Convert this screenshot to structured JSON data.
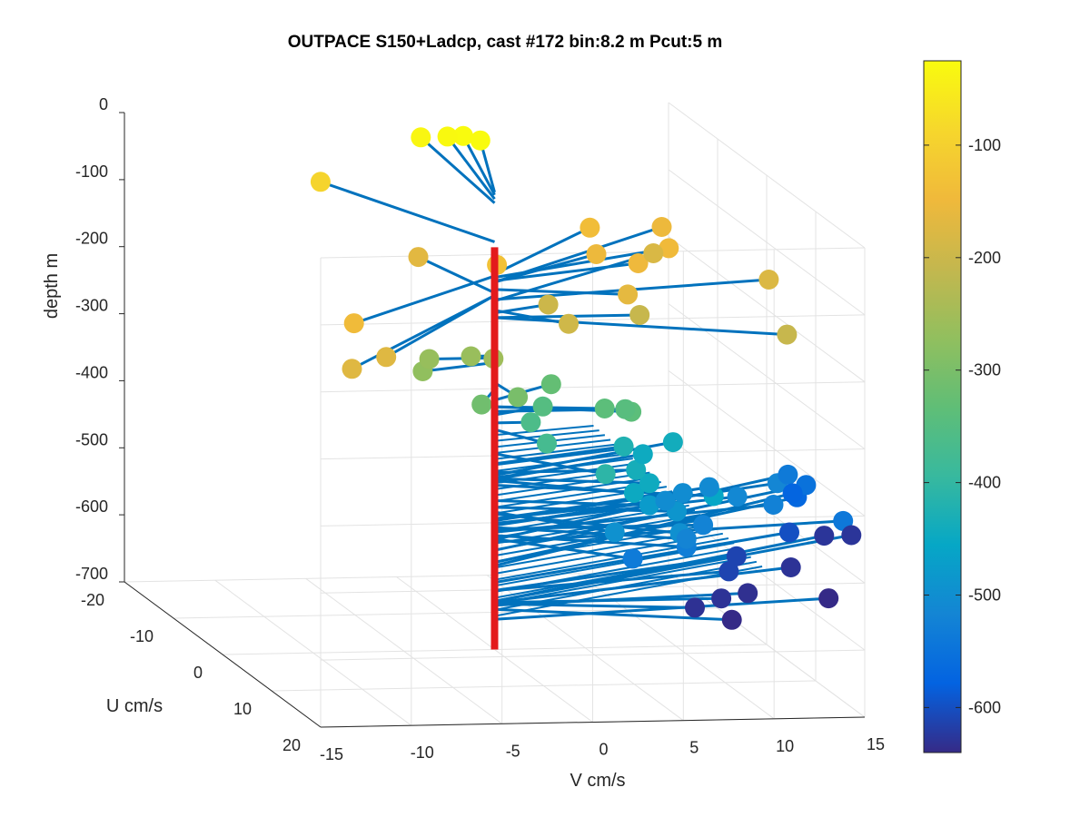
{
  "chart_data": {
    "type": "scatter3d",
    "title": "OUTPACE S150+Ladcp, cast #172 bin:8.2 m  Pcut:5 m",
    "xlabel": "V cm/s",
    "ylabel": "U cm/s",
    "zlabel": "depth m",
    "xlim": [
      -15,
      15
    ],
    "ylim": [
      -20,
      20
    ],
    "zlim": [
      -700,
      0
    ],
    "x_ticks": [
      "-15",
      "-10",
      "-5",
      "0",
      "5",
      "10",
      "15"
    ],
    "y_ticks": [
      "-20",
      "-10",
      "0",
      "10",
      "20"
    ],
    "z_ticks": [
      "0",
      "-100",
      "-200",
      "-300",
      "-400",
      "-500",
      "-600",
      "-700"
    ],
    "grid": true,
    "colormap": "parula",
    "colorbar": {
      "range": [
        -640,
        -25
      ],
      "ticks": [
        "-100",
        "-200",
        "-300",
        "-400",
        "-500",
        "-600"
      ]
    },
    "mean_depth_line": {
      "z_range": [
        -100,
        -700
      ],
      "color": "#e31a1c"
    },
    "stick_color": "#0072bd",
    "points": [
      {
        "z": -18,
        "v": 3.0,
        "u": -14
      },
      {
        "z": -22,
        "v": 2.6,
        "u": -16
      },
      {
        "z": -28,
        "v": 2.0,
        "u": -17
      },
      {
        "z": -34,
        "v": 0.8,
        "u": -18
      },
      {
        "z": -92,
        "v": -5.0,
        "u": -17
      },
      {
        "z": -132,
        "v": 0.4,
        "u": -1
      },
      {
        "z": -143,
        "v": -11.0,
        "u": 12
      },
      {
        "z": -168,
        "v": -1.5,
        "u": -10
      },
      {
        "z": -172,
        "v": -13.0,
        "u": 19
      },
      {
        "z": -172,
        "v": -10.3,
        "u": 16
      },
      {
        "z": -140,
        "v": 8.5,
        "u": -12
      },
      {
        "z": -145,
        "v": 11.5,
        "u": -7
      },
      {
        "z": -152,
        "v": 7.5,
        "u": -7
      },
      {
        "z": -150,
        "v": 9.0,
        "u": -4
      },
      {
        "z": -152,
        "v": 13.0,
        "u": -14
      },
      {
        "z": -163,
        "v": 6.8,
        "u": 2
      },
      {
        "z": -178,
        "v": 16.2,
        "u": -4
      },
      {
        "z": -180,
        "v": 12.0,
        "u": -12
      },
      {
        "z": -194,
        "v": 3.0,
        "u": 4
      },
      {
        "z": -198,
        "v": 3.5,
        "u": -2
      },
      {
        "z": -205,
        "v": 8.0,
        "u": 0
      },
      {
        "z": -205,
        "v": 14.5,
        "u": 6
      },
      {
        "z": -255,
        "v": -0.6,
        "u": 2
      },
      {
        "z": -262,
        "v": -1.3,
        "u": 0
      },
      {
        "z": -265,
        "v": -3.6,
        "u": 0
      },
      {
        "z": -272,
        "v": -4.5,
        "u": 2
      },
      {
        "z": -302,
        "v": 0.2,
        "u": 4
      },
      {
        "z": -312,
        "v": -1.8,
        "u": 4
      },
      {
        "z": -328,
        "v": 4.2,
        "u": -4
      },
      {
        "z": -338,
        "v": 7.0,
        "u": 2
      },
      {
        "z": -338,
        "v": 5.8,
        "u": 1
      },
      {
        "z": -345,
        "v": 7.2,
        "u": 0
      },
      {
        "z": -350,
        "v": 3.2,
        "u": -2
      },
      {
        "z": -362,
        "v": 2.0,
        "u": 0
      },
      {
        "z": -372,
        "v": 1.8,
        "u": 4
      },
      {
        "z": -408,
        "v": 4.5,
        "u": 6
      },
      {
        "z": -423,
        "v": 8.2,
        "u": -4
      },
      {
        "z": -440,
        "v": 12.0,
        "u": -8
      },
      {
        "z": -446,
        "v": 9.8,
        "u": -6
      },
      {
        "z": -436,
        "v": 7.8,
        "u": 0
      },
      {
        "z": -445,
        "v": 8.0,
        "u": 2
      },
      {
        "z": -448,
        "v": 6.6,
        "u": 4
      },
      {
        "z": -455,
        "v": 11.0,
        "u": 4
      },
      {
        "z": -478,
        "v": 8.0,
        "u": 2
      },
      {
        "z": -488,
        "v": 9.5,
        "u": 2
      },
      {
        "z": -495,
        "v": 5.0,
        "u": 6
      },
      {
        "z": -498,
        "v": 8.6,
        "u": 6
      },
      {
        "z": -505,
        "v": 10.5,
        "u": -4
      },
      {
        "z": -505,
        "v": 12.0,
        "u": -6
      },
      {
        "z": -508,
        "v": 14.0,
        "u": -8
      },
      {
        "z": -512,
        "v": 15.0,
        "u": -6
      },
      {
        "z": -515,
        "v": 18.3,
        "u": -10
      },
      {
        "z": -518,
        "v": 9.5,
        "u": 4
      },
      {
        "z": -520,
        "v": 11.5,
        "u": 0
      },
      {
        "z": -525,
        "v": 17.0,
        "u": -6
      },
      {
        "z": -540,
        "v": 20.3,
        "u": -4
      },
      {
        "z": -530,
        "v": 9.5,
        "u": 4
      },
      {
        "z": -535,
        "v": 6.0,
        "u": 6
      },
      {
        "z": -536,
        "v": 20.5,
        "u": -16
      },
      {
        "z": -552,
        "v": 21.5,
        "u": -16
      },
      {
        "z": -575,
        "v": 21.3,
        "u": -18
      },
      {
        "z": -570,
        "v": 21.0,
        "u": -16
      },
      {
        "z": -600,
        "v": 19.5,
        "u": -12
      },
      {
        "z": -612,
        "v": 15.5,
        "u": -8
      },
      {
        "z": -612,
        "v": 14.0,
        "u": -4
      },
      {
        "z": -628,
        "v": 22.5,
        "u": -16
      },
      {
        "z": -628,
        "v": 24.0,
        "u": -16
      },
      {
        "z": -630,
        "v": 18.5,
        "u": -8
      },
      {
        "z": -630,
        "v": 12.5,
        "u": 0
      },
      {
        "z": -632,
        "v": 10.5,
        "u": 2
      },
      {
        "z": -634,
        "v": 14.5,
        "u": -2
      },
      {
        "z": -640,
        "v": 12.0,
        "u": 4
      },
      {
        "z": -655,
        "v": 19.5,
        "u": -4
      }
    ]
  }
}
